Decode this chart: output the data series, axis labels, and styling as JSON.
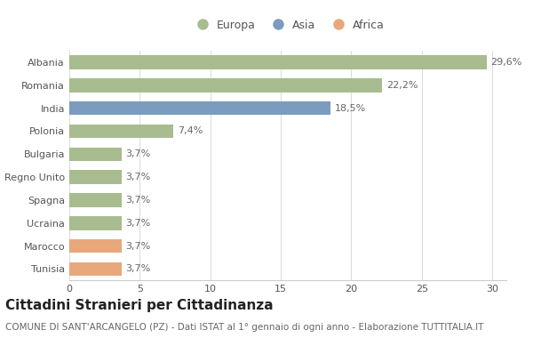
{
  "categories": [
    "Albania",
    "Romania",
    "India",
    "Polonia",
    "Bulgaria",
    "Regno Unito",
    "Spagna",
    "Ucraina",
    "Marocco",
    "Tunisia"
  ],
  "values": [
    29.6,
    22.2,
    18.5,
    7.4,
    3.7,
    3.7,
    3.7,
    3.7,
    3.7,
    3.7
  ],
  "labels": [
    "29,6%",
    "22,2%",
    "18,5%",
    "7,4%",
    "3,7%",
    "3,7%",
    "3,7%",
    "3,7%",
    "3,7%",
    "3,7%"
  ],
  "colors": [
    "#a8bc8f",
    "#a8bc8f",
    "#7b9bbf",
    "#a8bc8f",
    "#a8bc8f",
    "#a8bc8f",
    "#a8bc8f",
    "#a8bc8f",
    "#e8a87c",
    "#e8a87c"
  ],
  "legend_labels": [
    "Europa",
    "Asia",
    "Africa"
  ],
  "legend_colors": [
    "#a8bc8f",
    "#7b9bbf",
    "#e8a87c"
  ],
  "title": "Cittadini Stranieri per Cittadinanza",
  "subtitle": "COMUNE DI SANT'ARCANGELO (PZ) - Dati ISTAT al 1° gennaio di ogni anno - Elaborazione TUTTITALIA.IT",
  "xlim": [
    0,
    31
  ],
  "xticks": [
    0,
    5,
    10,
    15,
    20,
    25,
    30
  ],
  "background_color": "#ffffff",
  "bar_height": 0.6,
  "title_fontsize": 11,
  "subtitle_fontsize": 7.5,
  "label_fontsize": 8,
  "tick_fontsize": 8,
  "legend_fontsize": 9
}
